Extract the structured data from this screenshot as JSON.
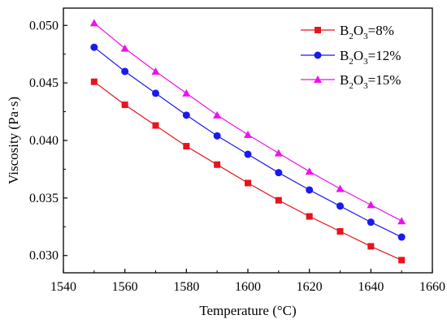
{
  "chart_data": {
    "type": "line",
    "xlabel": "Temperature (°C)",
    "ylabel": "Viscosity (Pa·s)",
    "xlim": [
      1540,
      1660
    ],
    "ylim": [
      0.0285,
      0.0515
    ],
    "xticks": [
      1540,
      1560,
      1580,
      1600,
      1620,
      1640,
      1660
    ],
    "xtick_labels": [
      "1540",
      "1560",
      "1580",
      "1600",
      "1620",
      "1640",
      "1660"
    ],
    "yticks": [
      0.03,
      0.035,
      0.04,
      0.045,
      0.05
    ],
    "ytick_labels": [
      "0.030",
      "0.035",
      "0.040",
      "0.045",
      "0.050"
    ],
    "x": [
      1550,
      1560,
      1570,
      1580,
      1590,
      1600,
      1610,
      1620,
      1630,
      1640,
      1650
    ],
    "series": [
      {
        "name": "B2O3=8%",
        "legend_main": "B",
        "legend_sub1": "2",
        "legend_mid": "O",
        "legend_sub2": "3",
        "legend_tail": "=8%",
        "color": "#e8141c",
        "marker": "square",
        "values": [
          0.0451,
          0.0431,
          0.0413,
          0.0395,
          0.0379,
          0.0363,
          0.0348,
          0.0334,
          0.0321,
          0.0308,
          0.0296
        ]
      },
      {
        "name": "B2O3=12%",
        "legend_main": "B",
        "legend_sub1": "2",
        "legend_mid": "O",
        "legend_sub2": "3",
        "legend_tail": "=12%",
        "color": "#1a1aee",
        "marker": "circle",
        "values": [
          0.0481,
          0.046,
          0.0441,
          0.0422,
          0.0404,
          0.0388,
          0.0372,
          0.0357,
          0.0343,
          0.0329,
          0.0316
        ]
      },
      {
        "name": "B2O3=15%",
        "legend_main": "B",
        "legend_sub1": "2",
        "legend_mid": "O",
        "legend_sub2": "3",
        "legend_tail": "=15%",
        "color": "#ee10ee",
        "marker": "triangle",
        "values": [
          0.0502,
          0.048,
          0.046,
          0.0441,
          0.0422,
          0.0405,
          0.0389,
          0.0373,
          0.0358,
          0.0344,
          0.033
        ]
      }
    ],
    "legend_position": "top-right",
    "grid": false
  }
}
